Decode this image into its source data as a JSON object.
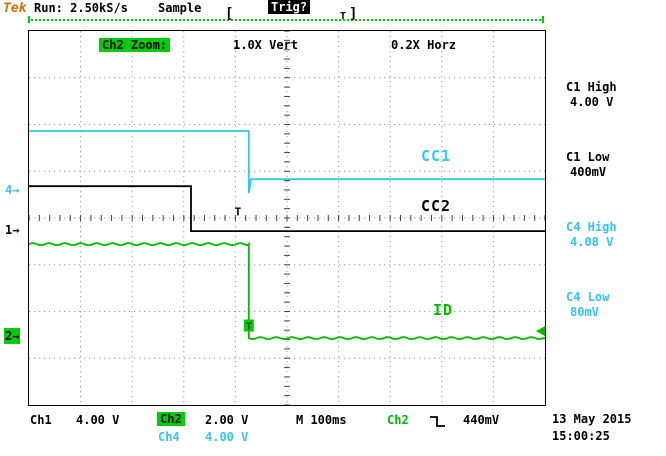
{
  "header": {
    "logo": "Tek",
    "run_status": "Run: 2.50kS/s",
    "acq_mode": "Sample",
    "trig_status": "Trig?",
    "record_bar": {
      "left_bracket": "[",
      "t_marker": "T",
      "right_bracket": "]"
    }
  },
  "zoom_bar": {
    "channel": "Ch2 Zoom:",
    "vert": "1.0X Vert",
    "horz": "0.2X Horz"
  },
  "measurements": [
    {
      "label": "C1 High",
      "value": "4.00 V",
      "color": "#000000"
    },
    {
      "label": "C1 Low",
      "value": "400mV",
      "color": "#000000"
    },
    {
      "label": "C4 High",
      "value": "4.08 V",
      "color": "#35C5EE"
    },
    {
      "label": "C4 Low",
      "value": "80mV",
      "color": "#35C5EE"
    }
  ],
  "footer": {
    "ch1_label": "Ch1",
    "ch1_scale": "4.00 V",
    "ch2_label": "Ch2",
    "ch2_scale": "2.00 V",
    "ch4_label": "Ch4",
    "ch4_scale": "4.00 V",
    "timebase": "M 100ms",
    "trig_source": "Ch2",
    "trig_level": "440mV",
    "date": "13 May 2015",
    "time": "15:00:25"
  },
  "chart_data": {
    "type": "line",
    "title": "",
    "timebase_per_div": "100ms",
    "grid_divisions": {
      "horizontal": 10,
      "vertical": 8
    },
    "series": [
      {
        "name": "CC1",
        "channel": "Ch4",
        "scale_per_div": "4.00 V",
        "color": "#35C5EE",
        "noisy": false,
        "width": 1.8,
        "high": "4.08 V",
        "low": "80mV",
        "points_div": [
          [
            0,
            2.14
          ],
          [
            4.26,
            2.14
          ],
          [
            4.26,
            3.47
          ],
          [
            4.3,
            3.17
          ],
          [
            10,
            3.17
          ]
        ]
      },
      {
        "name": "CC2",
        "channel": "Ch1",
        "scale_per_div": "4.00 V",
        "color": "#000000",
        "noisy": false,
        "width": 1.8,
        "high": "4.00 V",
        "low": "400mV",
        "points_div": [
          [
            0,
            3.32
          ],
          [
            3.14,
            3.32
          ],
          [
            3.14,
            4.28
          ],
          [
            10,
            4.28
          ]
        ]
      },
      {
        "name": "ID",
        "channel": "Ch2",
        "scale_per_div": "2.00 V",
        "color": "#00BB00",
        "noisy": true,
        "width": 1.8,
        "points_div": [
          [
            0,
            4.56
          ],
          [
            4.26,
            4.56
          ],
          [
            4.26,
            6.57
          ],
          [
            10,
            6.57
          ]
        ]
      }
    ],
    "channel_markers": [
      {
        "label": "4",
        "arrow": "→",
        "color": "#35C5EE",
        "y_div": 3.45,
        "inverted": false
      },
      {
        "label": "1",
        "arrow": "→",
        "color": "#000000",
        "y_div": 4.3,
        "inverted": false
      },
      {
        "label": "2",
        "arrow": "→",
        "color": "#00CC00",
        "y_div": 6.57,
        "inverted": true
      }
    ],
    "trigger_time_marker": {
      "label": "T",
      "x_div": 4.05,
      "y_div": 3.95
    },
    "trigger_point_marker": {
      "label": "T",
      "x_div": 4.26,
      "y_div": 6.3,
      "color": "#00CC00"
    },
    "trigger_level_marker": {
      "y_div": 6.42,
      "color": "#00BB00"
    }
  }
}
